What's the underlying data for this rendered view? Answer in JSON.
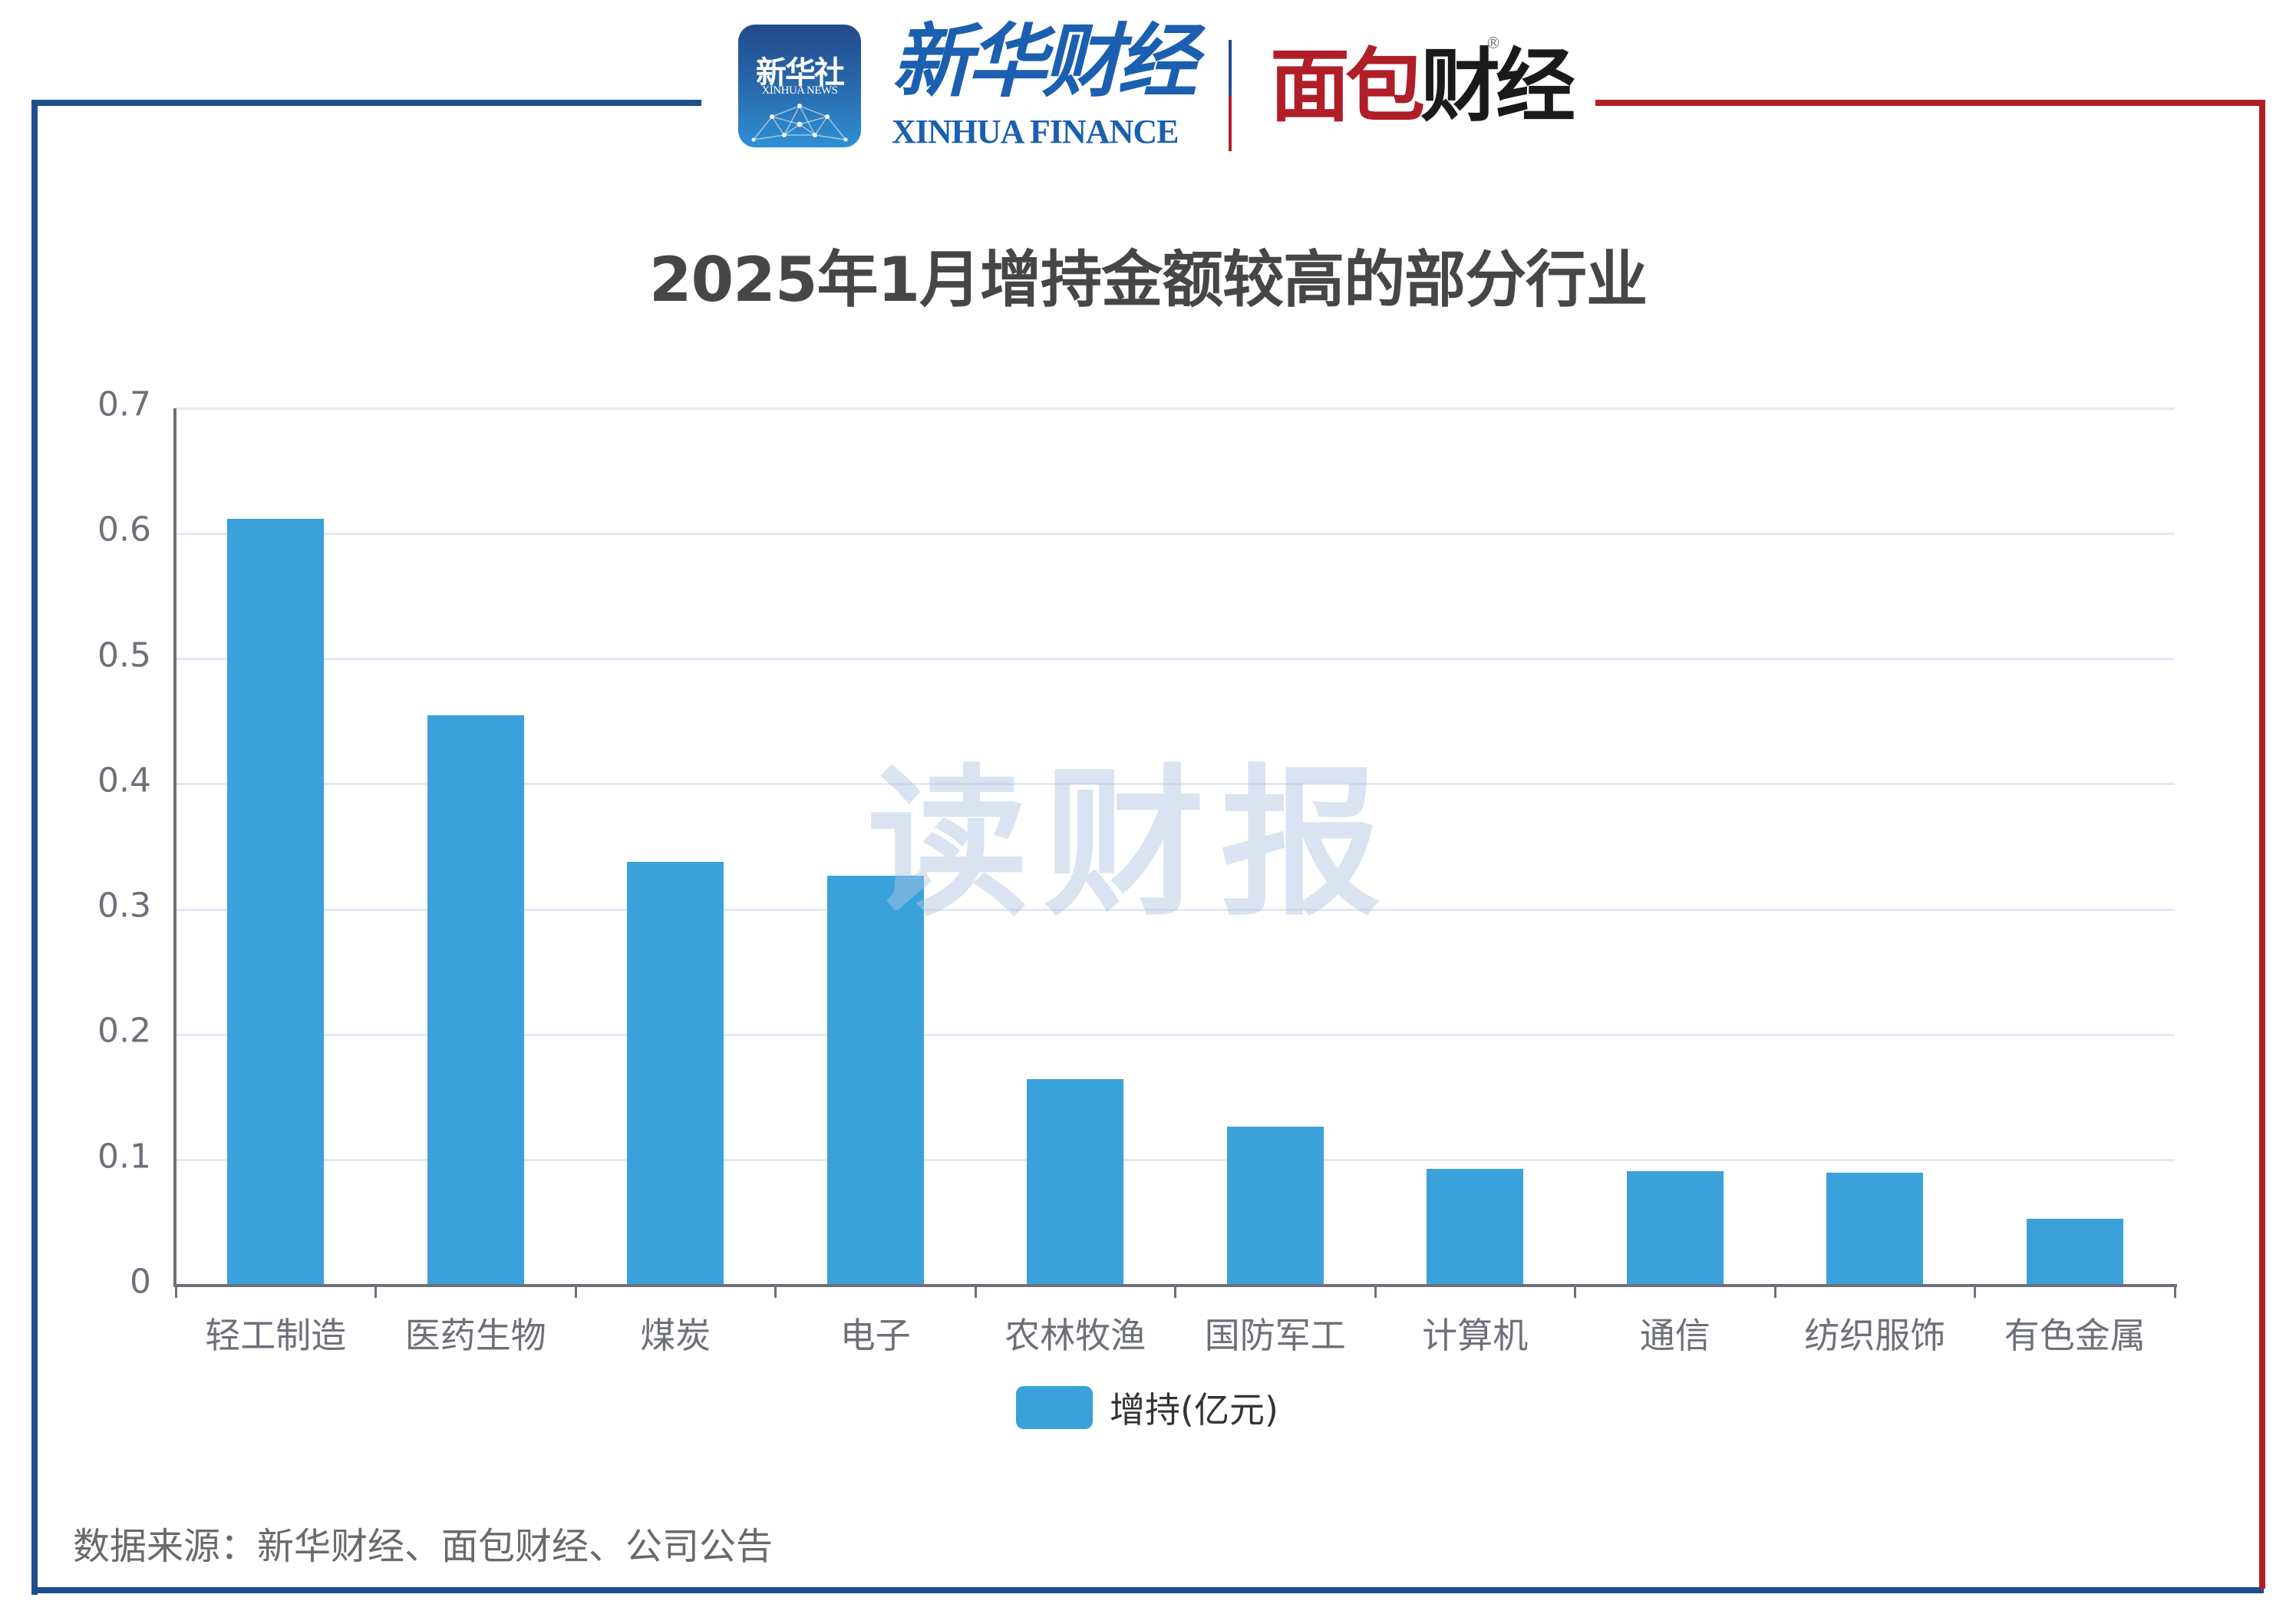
{
  "header": {
    "logo_xinhua_news_cn": "新华社",
    "logo_xinhua_news_en": "XINHUA NEWS",
    "logo_xinhua_finance_cn_1": "新华",
    "logo_xinhua_finance_cn_2": "财",
    "logo_xinhua_finance_cn_3": "经",
    "logo_xinhua_finance_en": "XINHUA FINANCE",
    "logo_mianbao_red": "面包",
    "logo_mianbao_black": "财经",
    "logo_registered": "®"
  },
  "colors": {
    "bar": "#3aa1da",
    "frame_blue": "#1f4e8c",
    "frame_red": "#b01e28",
    "gridline": "#e3e8f4",
    "axis": "#6e7079",
    "title": "#464646"
  },
  "watermark": "读财报",
  "chart_data": {
    "type": "bar",
    "title": "2025年1月增持金额较高的部分行业",
    "xlabel": "",
    "ylabel": "",
    "categories": [
      "轻工制造",
      "医药生物",
      "煤炭",
      "电子",
      "农林牧渔",
      "国防军工",
      "计算机",
      "通信",
      "纺织服饰",
      "有色金属"
    ],
    "series": [
      {
        "name": "增持(亿元)",
        "values": [
          0.612,
          0.455,
          0.338,
          0.327,
          0.165,
          0.127,
          0.093,
          0.091,
          0.09,
          0.053
        ]
      }
    ],
    "ylim": [
      0,
      0.7
    ],
    "yticks": [
      "0",
      "0.1",
      "0.2",
      "0.3",
      "0.4",
      "0.5",
      "0.6",
      "0.7"
    ],
    "grid": true,
    "legend_position": "bottom-center"
  },
  "legend": {
    "label": "增持(亿元)"
  },
  "footer": {
    "source": "数据来源：新华财经、面包财经、公司公告"
  }
}
